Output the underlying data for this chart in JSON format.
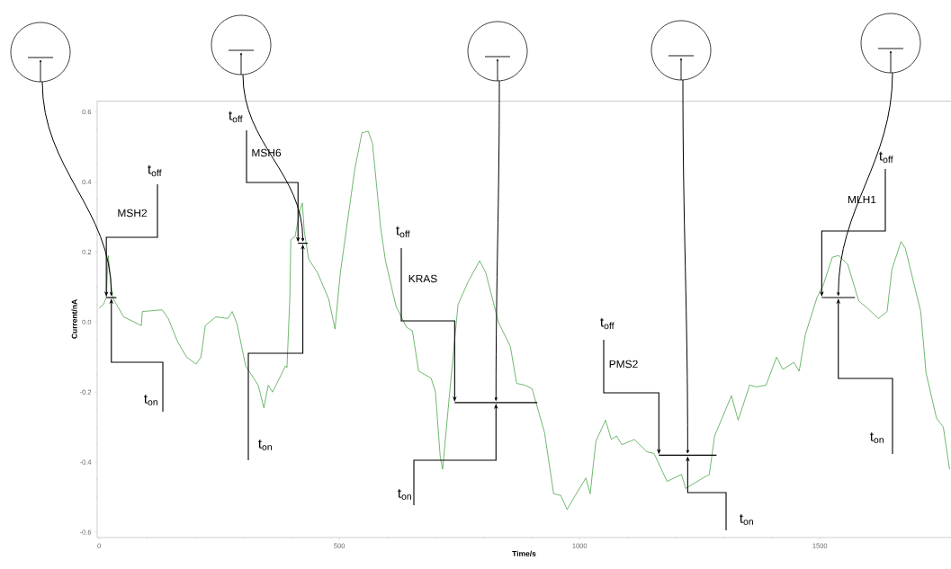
{
  "chart_data": {
    "type": "line",
    "xlabel": "Time/s",
    "ylabel": "Current/nA",
    "xlim": [
      -4,
      1773
    ],
    "ylim": [
      -0.615,
      0.632
    ],
    "xticks": [
      0,
      500,
      1000,
      1500
    ],
    "yticks": [
      -0.6,
      -0.4,
      -0.2,
      {
        "value": 0,
        "label": "0.0"
      },
      0.2,
      0.4,
      0.6
    ],
    "series": [
      {
        "color": "#4ca64c",
        "x": [
          0,
          9,
          15,
          19,
          28,
          51,
          88,
          90,
          131,
          144,
          163,
          182,
          202,
          212,
          221,
          243,
          268,
          277,
          287,
          305,
          331,
          343,
          352,
          361,
          388,
          391,
          397,
          399,
          408,
          418,
          423,
          427,
          436,
          455,
          478,
          491,
          502,
          532,
          547,
          560,
          569,
          586,
          596,
          618,
          640,
          652,
          665,
          691,
          700,
          710,
          715,
          728,
          747,
          768,
          792,
          805,
          831,
          856,
          869,
          886,
          901,
          927,
          946,
          961,
          974,
          991,
          1013,
          1022,
          1034,
          1054,
          1066,
          1077,
          1088,
          1114,
          1140,
          1155,
          1182,
          1212,
          1221,
          1257,
          1270,
          1281,
          1307,
          1316,
          1330,
          1354,
          1369,
          1388,
          1410,
          1423,
          1446,
          1457,
          1470,
          1494,
          1507,
          1526,
          1539,
          1558,
          1581,
          1599,
          1622,
          1640,
          1650,
          1669,
          1678,
          1710,
          1721,
          1743,
          1757,
          1770
        ],
        "values": [
          0.04,
          0.05,
          0.07,
          0.19,
          0.07,
          0.015,
          -0.01,
          0.03,
          0.035,
          0.01,
          -0.055,
          -0.1,
          -0.12,
          -0.1,
          -0.01,
          0.015,
          0.01,
          0.03,
          -0.005,
          -0.125,
          -0.18,
          -0.245,
          -0.18,
          -0.2,
          -0.125,
          -0.13,
          0.07,
          0.235,
          0.245,
          0.32,
          0.34,
          0.26,
          0.18,
          0.14,
          0.065,
          -0.02,
          0.14,
          0.435,
          0.54,
          0.545,
          0.51,
          0.27,
          0.175,
          0.045,
          -0.015,
          -0.025,
          -0.14,
          -0.16,
          -0.2,
          -0.385,
          -0.42,
          -0.225,
          0.05,
          0.115,
          0.175,
          0.14,
          0.0,
          -0.07,
          -0.175,
          -0.18,
          -0.19,
          -0.315,
          -0.49,
          -0.495,
          -0.535,
          -0.495,
          -0.445,
          -0.49,
          -0.34,
          -0.28,
          -0.335,
          -0.325,
          -0.35,
          -0.335,
          -0.37,
          -0.375,
          -0.455,
          -0.435,
          -0.475,
          -0.445,
          -0.435,
          -0.325,
          -0.24,
          -0.21,
          -0.28,
          -0.18,
          -0.185,
          -0.18,
          -0.1,
          -0.135,
          -0.115,
          -0.14,
          -0.035,
          0.07,
          0.105,
          0.185,
          0.19,
          0.165,
          0.06,
          0.04,
          0.01,
          0.03,
          0.15,
          0.23,
          0.21,
          0.03,
          -0.145,
          -0.275,
          -0.3,
          -0.42
        ]
      },
      {
        "color": "#000000",
        "x": [
          15,
          36
        ],
        "values": [
          0.07,
          0.07
        ]
      },
      {
        "color": "#000000",
        "x": [
          414,
          434
        ],
        "values": [
          0.225,
          0.225
        ]
      },
      {
        "color": "#000000",
        "x": [
          740,
          912
        ],
        "values": [
          -0.23,
          -0.23
        ]
      },
      {
        "color": "#000000",
        "x": [
          1165,
          1285
        ],
        "values": [
          -0.38,
          -0.38
        ]
      },
      {
        "color": "#000000",
        "x": [
          1504,
          1573
        ],
        "values": [
          0.07,
          0.07
        ]
      }
    ],
    "annotations": [
      "MSH2",
      {
        "text": "t$_{off}$",
        "x": 15,
        "y": 0.07
      },
      {
        "text": "t$_{on}$",
        "x": 25.5,
        "y": 0.07
      },
      "MSH6",
      {
        "text": "t$_{off}$",
        "x": 414,
        "y": 0.225
      },
      {
        "text": "t$_{on}$",
        "x": 424,
        "y": 0.225
      },
      "KRAS",
      {
        "text": "t$_{off}$",
        "x": 740,
        "y": -0.23
      },
      {
        "text": "t$_{on}$",
        "x": 826,
        "y": -0.23
      },
      "PMS2",
      {
        "text": "t$_{off}$",
        "x": 1165,
        "y": -0.38
      },
      {
        "text": "t$_{on}$",
        "x": 1225,
        "y": -0.38
      },
      "MLH1",
      {
        "text": "t$_{off}$",
        "x": 1504,
        "y": 0.07
      },
      {
        "text": "t$_{on}$",
        "x": 1538.5,
        "y": 0.07
      }
    ]
  }
}
